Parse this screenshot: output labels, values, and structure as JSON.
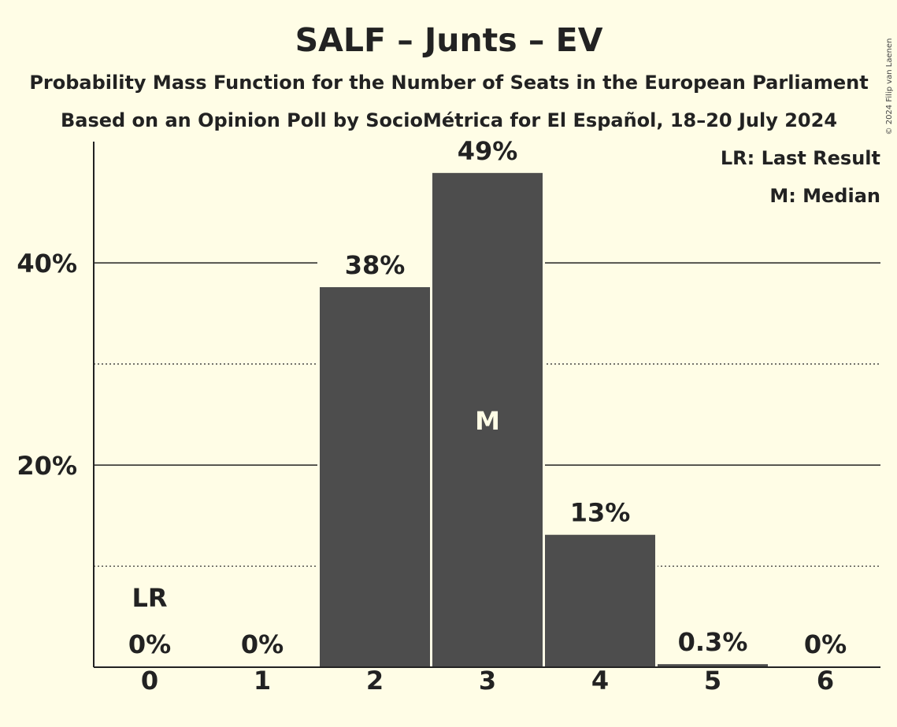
{
  "chart_data": {
    "type": "bar",
    "title": "SALF – Junts – EV",
    "subtitle_1": "Probability Mass Function for the Number of Seats in the European Parliament",
    "subtitle_2": "Based on an Opinion Poll by SocioMétrica for El Español, 18–20 July 2024",
    "categories": [
      "0",
      "1",
      "2",
      "3",
      "4",
      "5",
      "6"
    ],
    "values": [
      0,
      0,
      37.6,
      48.9,
      13.1,
      0.3,
      0
    ],
    "data_labels": [
      "0%",
      "0%",
      "38%",
      "49%",
      "13%",
      "0.3%",
      "0%"
    ],
    "ylim": [
      0,
      52
    ],
    "ytick_values": [
      20,
      40
    ],
    "ytick_labels": [
      "20%",
      "40%"
    ],
    "minor_gridlines": [
      10,
      30
    ],
    "median_index": 3,
    "median_label": "M",
    "last_result_index": 0,
    "last_result_label": "LR",
    "legend": [
      "LR: Last Result",
      "M: Median"
    ],
    "legend_position": "top-right",
    "bar_color": "#4d4d4d",
    "background_color": "#fffde6"
  },
  "copyright": "© 2024 Filip van Laenen"
}
